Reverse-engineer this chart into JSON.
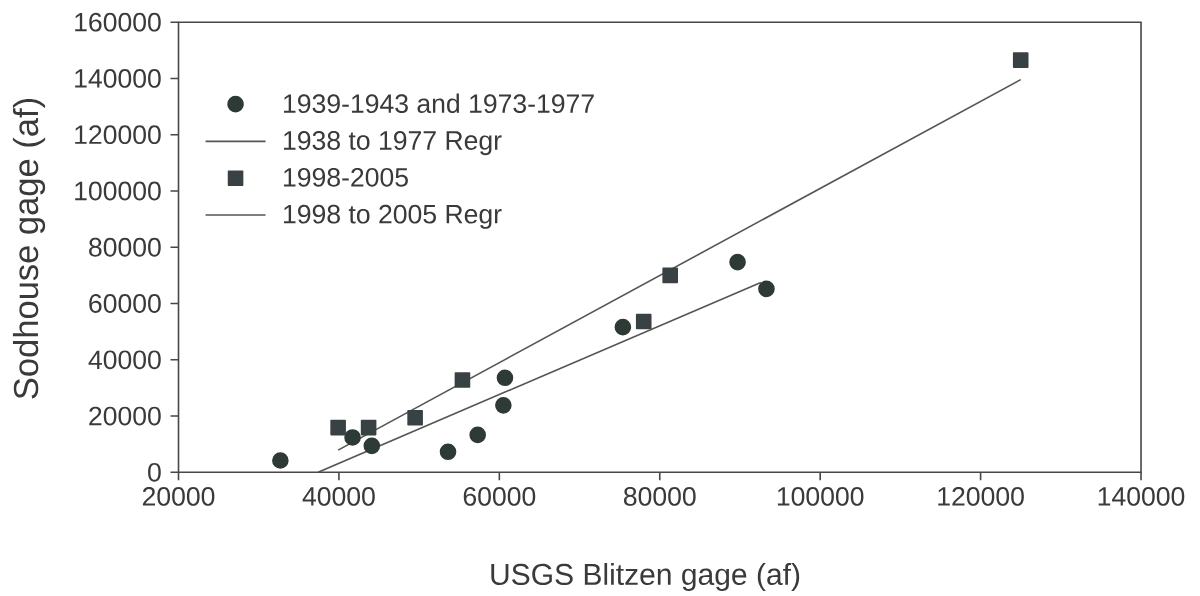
{
  "chart_data": {
    "type": "scatter",
    "xlabel": "USGS Blitzen gage (af)",
    "ylabel": "Sodhouse gage (af)",
    "series": [
      {
        "name": "1939-1943 and 1973-1977",
        "marker": "circle",
        "color": "#2e3a36",
        "x": [
          32700,
          41700,
          44100,
          53600,
          57300,
          60500,
          60700,
          75400,
          89700,
          93300
        ],
        "values": [
          4200,
          12400,
          9400,
          7300,
          13300,
          23800,
          33600,
          51600,
          74700,
          65200
        ]
      },
      {
        "name": "1938 to 1977 Regr",
        "type": "line",
        "color": "#555555",
        "x": [
          37400,
          92600
        ],
        "values": [
          0,
          67500
        ]
      },
      {
        "name": "1998-2005",
        "marker": "square",
        "color": "#384244",
        "x": [
          39900,
          43700,
          49500,
          55400,
          78000,
          81300,
          125000
        ],
        "values": [
          15900,
          15900,
          19400,
          32800,
          53600,
          70000,
          146500
        ]
      },
      {
        "name": "1998 to 2005 Regr",
        "type": "line",
        "color": "#555555",
        "x": [
          39900,
          125000
        ],
        "values": [
          7900,
          139600
        ]
      }
    ],
    "xlim": [
      20000,
      140000
    ],
    "ylim": [
      0,
      160000
    ],
    "xticks": [
      20000,
      40000,
      60000,
      80000,
      100000,
      120000,
      140000
    ],
    "yticks": [
      0,
      20000,
      40000,
      60000,
      80000,
      100000,
      120000,
      140000,
      160000
    ],
    "legend": "top left"
  }
}
